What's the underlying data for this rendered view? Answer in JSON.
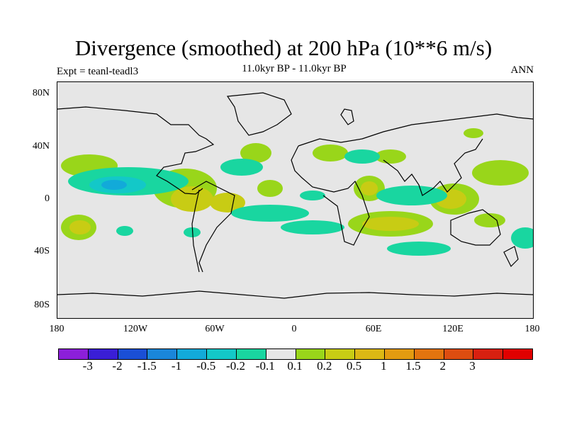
{
  "header": {
    "title": "Divergence (smoothed) at 200 hPa (10**6 m/s)",
    "subtitle": "11.0kyr BP - 11.0kyr BP",
    "left_label": "Expt = teanl-teadl3",
    "right_label": "ANN"
  },
  "map": {
    "lat_ticks": [
      "80N",
      "40N",
      "0",
      "40S",
      "80S"
    ],
    "lon_ticks": [
      "180",
      "120W",
      "60W",
      "0",
      "60E",
      "120E",
      "180"
    ],
    "background_color": "#e6e6e6"
  },
  "colorbar": {
    "colors": [
      "#8c1fd9",
      "#3a1ed6",
      "#1a4fd6",
      "#1a86d9",
      "#12aad9",
      "#13c8c8",
      "#19d6a0",
      "#e6e6e6",
      "#99d61a",
      "#c8cc14",
      "#dcb814",
      "#e39b10",
      "#e3740e",
      "#dd4d10",
      "#d82010",
      "#e00000"
    ],
    "labels": [
      "-3",
      "-2",
      "-1.5",
      "-1",
      "-0.5",
      "-0.2",
      "-0.1",
      "0.1",
      "0.2",
      "0.5",
      "1",
      "1.5",
      "2",
      "3"
    ]
  }
}
